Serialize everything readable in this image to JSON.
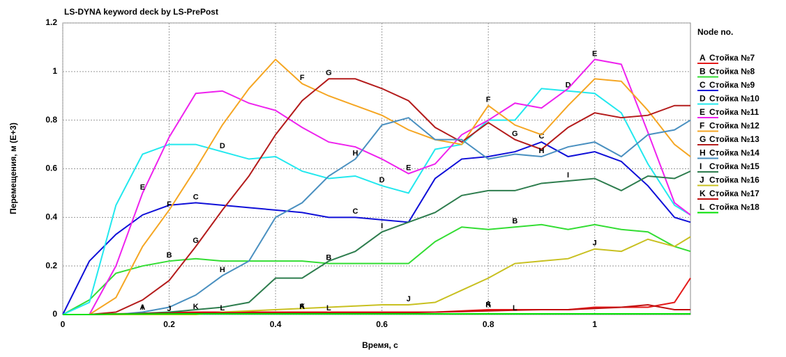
{
  "chart_data": {
    "type": "line",
    "title": "LS-DYNA keyword deck by LS-PrePost",
    "x_label": "Время, с",
    "y_label": "Перемещения, м (E+3)",
    "legend_title": "Node no.",
    "legend": "right",
    "grid": true,
    "xlim": [
      0,
      1.18
    ],
    "ylim": [
      0,
      1.2
    ],
    "xticks": [
      0,
      0.2,
      0.4,
      0.6,
      0.8,
      1
    ],
    "yticks": [
      0,
      0.2,
      0.4,
      0.6,
      0.8,
      1,
      1.2
    ],
    "x": [
      0,
      0.05,
      0.1,
      0.15,
      0.2,
      0.25,
      0.3,
      0.35,
      0.4,
      0.45,
      0.5,
      0.55,
      0.6,
      0.65,
      0.7,
      0.75,
      0.8,
      0.85,
      0.9,
      0.95,
      1.0,
      1.05,
      1.1,
      1.15,
      1.18
    ],
    "series": [
      {
        "marker": "A",
        "name": "Стойка №7",
        "color": "#e41a1a",
        "values": [
          0,
          0,
          0.003,
          0.005,
          0.008,
          0.01,
          0.01,
          0.01,
          0.01,
          0.01,
          0.01,
          0.01,
          0.01,
          0.01,
          0.01,
          0.015,
          0.02,
          0.02,
          0.02,
          0.02,
          0.03,
          0.03,
          0.03,
          0.05,
          0.15
        ]
      },
      {
        "marker": "B",
        "name": "Стойка №8",
        "color": "#33dd33",
        "values": [
          0,
          0.06,
          0.17,
          0.2,
          0.22,
          0.23,
          0.22,
          0.22,
          0.22,
          0.22,
          0.21,
          0.21,
          0.21,
          0.21,
          0.3,
          0.36,
          0.35,
          0.36,
          0.37,
          0.35,
          0.37,
          0.35,
          0.34,
          0.28,
          0.26
        ]
      },
      {
        "marker": "C",
        "name": "Стойка №9",
        "color": "#1010d8",
        "values": [
          0,
          0.22,
          0.33,
          0.41,
          0.45,
          0.46,
          0.45,
          0.44,
          0.43,
          0.42,
          0.4,
          0.4,
          0.39,
          0.38,
          0.56,
          0.64,
          0.65,
          0.67,
          0.71,
          0.65,
          0.67,
          0.63,
          0.53,
          0.4,
          0.38
        ]
      },
      {
        "marker": "D",
        "name": "Стойка №10",
        "color": "#22e8ee",
        "values": [
          0,
          0.05,
          0.45,
          0.66,
          0.7,
          0.7,
          0.67,
          0.64,
          0.65,
          0.59,
          0.56,
          0.57,
          0.53,
          0.5,
          0.68,
          0.7,
          0.8,
          0.8,
          0.93,
          0.92,
          0.91,
          0.83,
          0.62,
          0.45,
          0.41
        ]
      },
      {
        "marker": "E",
        "name": "Стойка №11",
        "color": "#ee22ee",
        "values": [
          0,
          0,
          0.2,
          0.5,
          0.73,
          0.91,
          0.92,
          0.87,
          0.84,
          0.77,
          0.71,
          0.69,
          0.64,
          0.58,
          0.62,
          0.74,
          0.8,
          0.87,
          0.85,
          0.93,
          1.05,
          1.03,
          0.75,
          0.46,
          0.41
        ]
      },
      {
        "marker": "F",
        "name": "Стойка №12",
        "color": "#f5a623",
        "values": [
          0,
          0,
          0.07,
          0.28,
          0.43,
          0.6,
          0.78,
          0.93,
          1.05,
          0.95,
          0.9,
          0.86,
          0.82,
          0.76,
          0.72,
          0.7,
          0.86,
          0.78,
          0.74,
          0.86,
          0.97,
          0.96,
          0.84,
          0.7,
          0.65
        ]
      },
      {
        "marker": "G",
        "name": "Стойка №13",
        "color": "#b41c1c",
        "values": [
          0,
          0,
          0.01,
          0.06,
          0.14,
          0.28,
          0.43,
          0.57,
          0.74,
          0.88,
          0.97,
          0.97,
          0.93,
          0.88,
          0.77,
          0.71,
          0.79,
          0.72,
          0.68,
          0.77,
          0.83,
          0.81,
          0.82,
          0.86,
          0.86
        ]
      },
      {
        "marker": "H",
        "name": "Стойка №14",
        "color": "#4a90c0",
        "values": [
          0,
          0,
          0,
          0.01,
          0.03,
          0.08,
          0.16,
          0.22,
          0.4,
          0.46,
          0.57,
          0.64,
          0.78,
          0.81,
          0.72,
          0.72,
          0.64,
          0.66,
          0.65,
          0.69,
          0.71,
          0.65,
          0.74,
          0.76,
          0.8
        ]
      },
      {
        "marker": "I",
        "name": "Стойка №15",
        "color": "#2e7d4e",
        "values": [
          0,
          0,
          0,
          0.005,
          0.01,
          0.02,
          0.03,
          0.05,
          0.15,
          0.15,
          0.22,
          0.26,
          0.34,
          0.38,
          0.42,
          0.49,
          0.51,
          0.51,
          0.54,
          0.55,
          0.56,
          0.51,
          0.57,
          0.56,
          0.59
        ]
      },
      {
        "marker": "J",
        "name": "Стойка №16",
        "color": "#c8c020",
        "values": [
          0,
          0,
          0,
          0,
          0,
          0,
          0.01,
          0.015,
          0.02,
          0.025,
          0.03,
          0.035,
          0.04,
          0.04,
          0.05,
          0.1,
          0.15,
          0.21,
          0.22,
          0.23,
          0.27,
          0.26,
          0.31,
          0.28,
          0.32
        ]
      },
      {
        "marker": "K",
        "name": "Стойка №17",
        "color": "#c01010",
        "values": [
          0,
          0,
          0.002,
          0.004,
          0.006,
          0.008,
          0.008,
          0.008,
          0.008,
          0.008,
          0.008,
          0.008,
          0.008,
          0.008,
          0.01,
          0.012,
          0.015,
          0.018,
          0.02,
          0.02,
          0.025,
          0.03,
          0.04,
          0.02,
          0.02
        ]
      },
      {
        "marker": "L",
        "name": "Стойка №18",
        "color": "#00e000",
        "values": [
          0,
          0,
          0.002,
          0.002,
          0.003,
          0.003,
          0.003,
          0.003,
          0.003,
          0.003,
          0.003,
          0.003,
          0.003,
          0.003,
          0.003,
          0.003,
          0.003,
          0.003,
          0.003,
          0.003,
          0.003,
          0.003,
          0.003,
          0.003,
          0.003
        ]
      }
    ]
  }
}
